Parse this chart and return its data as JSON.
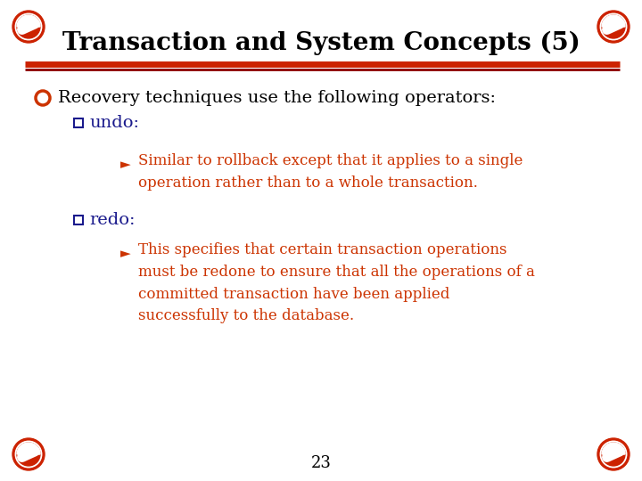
{
  "title": "Transaction and System Concepts (5)",
  "title_color": "#000000",
  "title_fontsize": 20,
  "bg_color": "#FFFFFF",
  "line_color1": "#CC2200",
  "line_color2": "#8B0000",
  "bullet1_text": "Recovery techniques use the following operators:",
  "bullet1_color": "#000000",
  "bullet1_fontsize": 14,
  "sub_label_color": "#1A1A8C",
  "sub_label_fontsize": 14,
  "sub1_label": "undo:",
  "sub2_label": "redo:",
  "arrow_color": "#CC3300",
  "detail1_text": "Similar to rollback except that it applies to a single\noperation rather than to a whole transaction.",
  "detail1_color": "#CC3300",
  "detail1_fontsize": 12,
  "detail2_text": "This specifies that certain transaction operations\nmust be redone to ensure that all the operations of a\ncommitted transaction have been applied\nsuccessfully to the database.",
  "detail2_color": "#CC3300",
  "detail2_fontsize": 12,
  "page_number": "23",
  "page_num_color": "#000000",
  "page_num_fontsize": 13,
  "icon_color": "#CC2200",
  "bullet_marker_color": "#CC3300",
  "sq_marker_color": "#1A1A8C"
}
